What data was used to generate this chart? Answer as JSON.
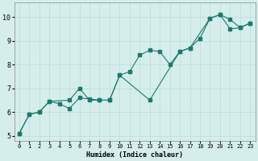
{
  "title": "",
  "xlabel": "Humidex (Indice chaleur)",
  "bg_color": "#d6eeeb",
  "line_color": "#1a7a6e",
  "xlim": [
    -0.5,
    23.5
  ],
  "ylim": [
    4.8,
    10.6
  ],
  "xticks": [
    0,
    1,
    2,
    3,
    4,
    5,
    6,
    7,
    8,
    9,
    10,
    11,
    12,
    13,
    14,
    15,
    16,
    17,
    18,
    19,
    20,
    21,
    22,
    23
  ],
  "yticks": [
    5,
    6,
    7,
    8,
    9,
    10
  ],
  "series1_x": [
    0,
    1,
    2,
    3,
    4,
    5,
    6,
    7,
    8,
    9,
    10,
    11,
    12,
    13,
    14,
    15,
    16,
    17,
    18,
    19,
    20,
    21,
    22,
    23
  ],
  "series1_y": [
    5.1,
    5.9,
    6.0,
    6.45,
    6.35,
    6.15,
    6.6,
    6.55,
    6.5,
    6.5,
    7.55,
    7.7,
    8.4,
    8.6,
    8.55,
    8.0,
    8.55,
    8.7,
    9.1,
    9.95,
    10.1,
    9.9,
    9.55,
    9.75
  ],
  "series2_x": [
    0,
    1,
    2,
    3,
    5,
    6,
    7,
    8,
    9,
    10,
    13,
    16,
    17,
    19,
    20,
    21,
    22,
    23
  ],
  "series2_y": [
    5.1,
    5.9,
    6.0,
    6.45,
    6.5,
    7.0,
    6.5,
    6.5,
    6.5,
    7.55,
    6.5,
    8.55,
    8.7,
    9.95,
    10.1,
    9.5,
    9.55,
    9.75
  ],
  "xlabel_fontsize": 6,
  "tick_fontsize_x": 5,
  "tick_fontsize_y": 6,
  "grid_color": "#b8dcd8",
  "spine_color": "#888888"
}
